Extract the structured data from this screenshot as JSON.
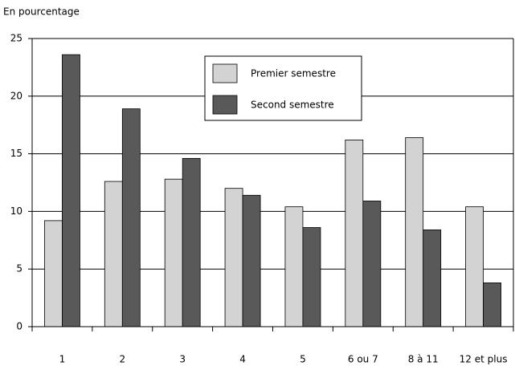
{
  "chart_data": {
    "type": "bar",
    "title": "En pourcentage",
    "categories": [
      "1",
      "2",
      "3",
      "4",
      "5",
      "6 ou 7",
      "8 à 11",
      "12 et plus"
    ],
    "series": [
      {
        "name": "Premier semestre",
        "color": "#d3d3d3",
        "values": [
          9.2,
          12.6,
          12.8,
          12.0,
          10.4,
          16.2,
          16.4,
          10.4
        ]
      },
      {
        "name": "Second semestre",
        "color": "#595959",
        "values": [
          23.6,
          18.9,
          14.6,
          11.4,
          8.6,
          10.9,
          8.4,
          3.8
        ]
      }
    ],
    "ylim": [
      0,
      25
    ],
    "yticks": [
      0,
      5,
      10,
      15,
      20,
      25
    ],
    "grid": true
  }
}
